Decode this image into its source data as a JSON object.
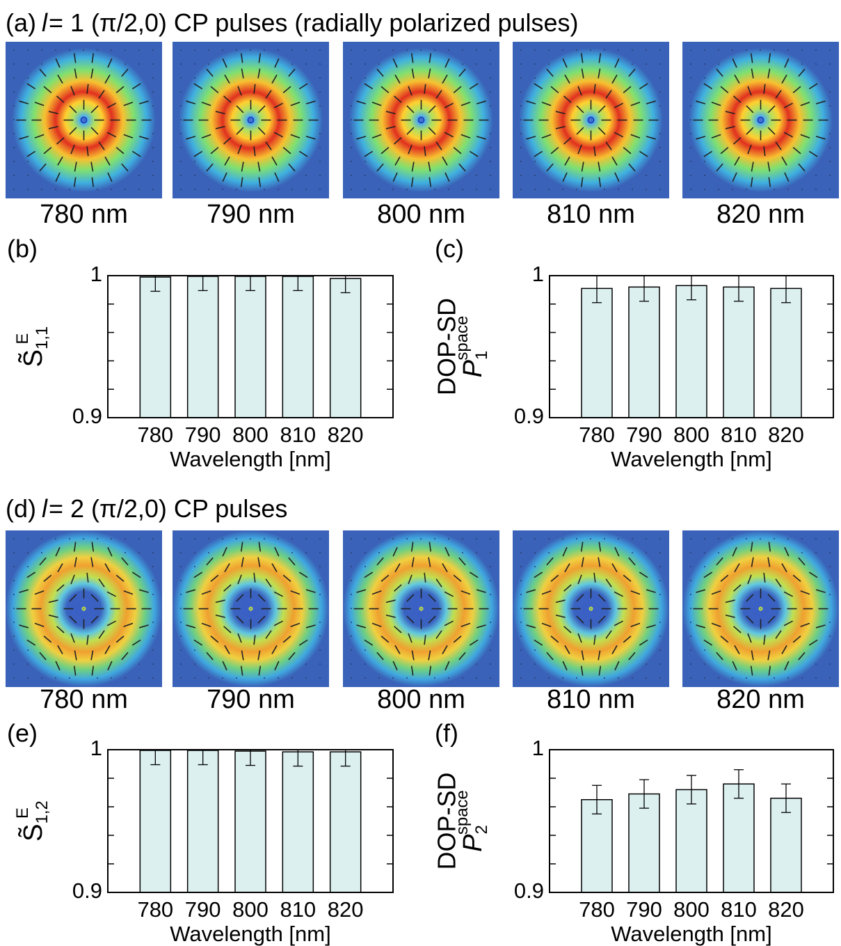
{
  "rows": [
    {
      "label": "(a)",
      "var": "l",
      "text": "= 1 (π/2,0) CP pulses (radially polarized pulses)",
      "order": 1,
      "images": [
        "780 nm",
        "790 nm",
        "800 nm",
        "810 nm",
        "820 nm"
      ]
    },
    {
      "label": "(d)",
      "var": "l",
      "text": "= 2 (π/2,0) CP pulses",
      "order": 2,
      "images": [
        "780 nm",
        "790 nm",
        "800 nm",
        "810 nm",
        "820 nm"
      ]
    }
  ],
  "chart_data": [
    {
      "type": "bar",
      "panel": "(b)",
      "ylabel": {
        "base": "S̃",
        "sup": "E",
        "sub": "1,1"
      },
      "xlabel": "Wavelength [nm]",
      "categories": [
        "780",
        "790",
        "800",
        "810",
        "820"
      ],
      "values": [
        0.999,
        0.9995,
        0.9995,
        0.9995,
        0.998
      ],
      "errors": [
        0.01,
        0.01,
        0.01,
        0.01,
        0.01
      ],
      "ylim": [
        0.9,
        1
      ],
      "yticks": [
        0.9,
        1
      ],
      "minor_yticks": [
        0.92,
        0.94,
        0.96,
        0.98
      ],
      "color": "#dcf0f0"
    },
    {
      "type": "bar",
      "panel": "(c)",
      "ylabel": {
        "line1": "DOP-SD",
        "base": "P",
        "sup": "space",
        "sub": "1"
      },
      "xlabel": "Wavelength [nm]",
      "categories": [
        "780",
        "790",
        "800",
        "810",
        "820"
      ],
      "values": [
        0.991,
        0.992,
        0.993,
        0.992,
        0.991
      ],
      "errors": [
        0.01,
        0.01,
        0.01,
        0.01,
        0.01
      ],
      "ylim": [
        0.9,
        1
      ],
      "yticks": [
        0.9,
        1
      ],
      "minor_yticks": [
        0.92,
        0.94,
        0.96,
        0.98
      ],
      "color": "#dcf0f0"
    },
    {
      "type": "bar",
      "panel": "(e)",
      "ylabel": {
        "base": "S̃",
        "sup": "E",
        "sub": "1,2"
      },
      "xlabel": "Wavelength [nm]",
      "categories": [
        "780",
        "790",
        "800",
        "810",
        "820"
      ],
      "values": [
        0.9995,
        0.9995,
        0.999,
        0.9985,
        0.9985
      ],
      "errors": [
        0.01,
        0.01,
        0.01,
        0.01,
        0.01
      ],
      "ylim": [
        0.9,
        1
      ],
      "yticks": [
        0.9,
        1
      ],
      "minor_yticks": [
        0.92,
        0.94,
        0.96,
        0.98
      ],
      "color": "#dcf0f0"
    },
    {
      "type": "bar",
      "panel": "(f)",
      "ylabel": {
        "line1": "DOP-SD",
        "base": "P",
        "sup": "space",
        "sub": "2"
      },
      "xlabel": "Wavelength [nm]",
      "categories": [
        "780",
        "790",
        "800",
        "810",
        "820"
      ],
      "values": [
        0.965,
        0.969,
        0.972,
        0.976,
        0.966
      ],
      "errors": [
        0.01,
        0.01,
        0.01,
        0.01,
        0.01
      ],
      "ylim": [
        0.9,
        1
      ],
      "yticks": [
        0.9,
        1
      ],
      "minor_yticks": [
        0.92,
        0.94,
        0.96,
        0.98
      ],
      "color": "#dcf0f0"
    }
  ]
}
